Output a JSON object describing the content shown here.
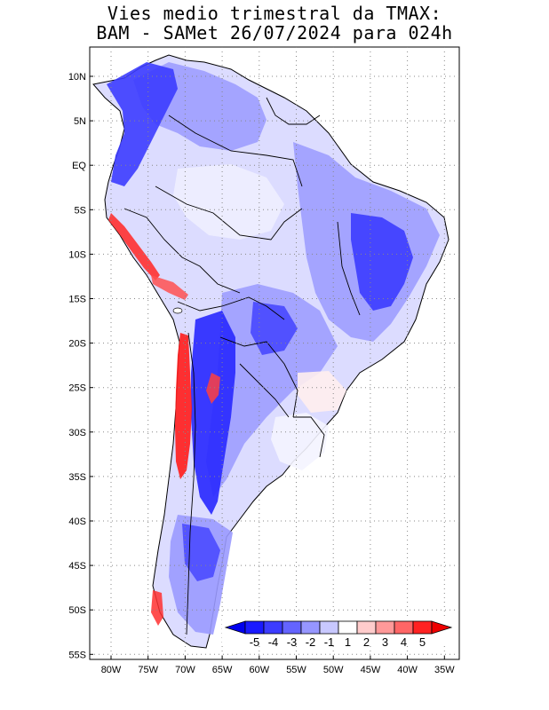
{
  "title": {
    "line1": "Vies medio trimestral da TMAX:",
    "line2": "BAM - SAMet 26/07/2024  para 024h"
  },
  "axes": {
    "lat_labels": [
      "10N",
      "5N",
      "EQ",
      "5S",
      "10S",
      "15S",
      "20S",
      "25S",
      "30S",
      "35S",
      "40S",
      "45S",
      "50S",
      "55S"
    ],
    "lon_labels": [
      "80W",
      "75W",
      "70W",
      "65W",
      "60W",
      "55W",
      "50W",
      "45W",
      "40W",
      "35W"
    ],
    "lat_range": [
      -56,
      13
    ],
    "lon_range": [
      -83,
      -34
    ],
    "grid": "dotted"
  },
  "colorbar": {
    "labels": [
      "-5",
      "-4",
      "-3",
      "-2",
      "-1",
      "1",
      "2",
      "3",
      "4",
      "5"
    ],
    "colors": [
      "#1a1aff",
      "#3c3cff",
      "#6464ff",
      "#9696ff",
      "#c8c8ff",
      "#ffffff",
      "#ffcccc",
      "#ff9999",
      "#ff6666",
      "#ff2222"
    ],
    "min_arrow_color": "#0000ee",
    "max_arrow_color": "#ee0000",
    "units": ""
  },
  "colors": {
    "ocean": "#ffffff",
    "land_light": "#dcdcff",
    "land_medium": "#9a9aff",
    "land_strong": "#4646ff",
    "land_extreme": "#1010ee",
    "positive_bias": "#ff3030",
    "border": "#000000"
  }
}
